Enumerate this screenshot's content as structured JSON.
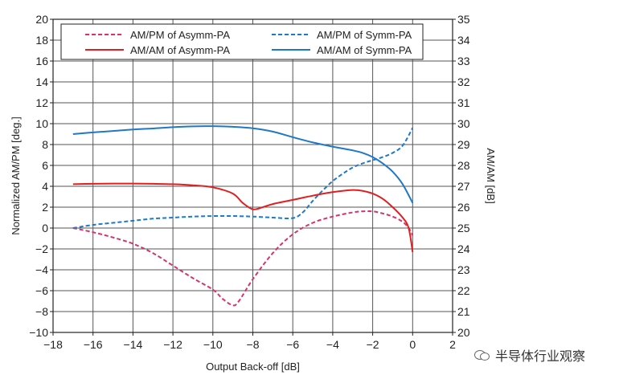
{
  "chart_data": {
    "type": "line",
    "xlabel": "Output Back-off [dB]",
    "ylabel_left": "Normalized AM/PM [deg.]",
    "ylabel_right": "AM/AM [dB]",
    "xlim": [
      -18,
      2
    ],
    "ylim_left": [
      -10,
      20
    ],
    "ylim_right": [
      20,
      35
    ],
    "xticks": [
      -18,
      -16,
      -14,
      -12,
      -10,
      -8,
      -6,
      -4,
      -2,
      0,
      2
    ],
    "yticks_left": [
      -10,
      -8,
      -6,
      -4,
      -2,
      0,
      2,
      4,
      6,
      8,
      10,
      12,
      14,
      16,
      18,
      20
    ],
    "yticks_right": [
      20,
      21,
      22,
      23,
      24,
      25,
      26,
      27,
      28,
      29,
      30,
      31,
      32,
      33,
      34,
      35
    ],
    "grid": true,
    "legend_position": "top",
    "series": [
      {
        "name": "AM/PM of Asymm-PA",
        "axis": "left",
        "style": "dashed",
        "color": "#d6336c",
        "points": [
          [
            -17,
            0
          ],
          [
            -16,
            -0.4
          ],
          [
            -15,
            -0.9
          ],
          [
            -14,
            -1.5
          ],
          [
            -13,
            -2.4
          ],
          [
            -12,
            -3.6
          ],
          [
            -11,
            -4.8
          ],
          [
            -10,
            -5.9
          ],
          [
            -9.5,
            -6.8
          ],
          [
            -9,
            -7.4
          ],
          [
            -8.7,
            -7.0
          ],
          [
            -8,
            -4.9
          ],
          [
            -7,
            -2.4
          ],
          [
            -6,
            -0.6
          ],
          [
            -5,
            0.5
          ],
          [
            -4,
            1.1
          ],
          [
            -3,
            1.5
          ],
          [
            -2.5,
            1.6
          ],
          [
            -2,
            1.6
          ],
          [
            -1.5,
            1.4
          ],
          [
            -1,
            1.1
          ],
          [
            -0.5,
            0.6
          ],
          [
            -0.2,
            0
          ],
          [
            0,
            -0.7
          ]
        ]
      },
      {
        "name": "AM/PM of Symm-PA",
        "axis": "left",
        "style": "dashed",
        "color": "#1f78c8",
        "points": [
          [
            -17,
            0
          ],
          [
            -16,
            0.3
          ],
          [
            -15,
            0.5
          ],
          [
            -14,
            0.7
          ],
          [
            -13,
            0.9
          ],
          [
            -12,
            1.0
          ],
          [
            -11,
            1.1
          ],
          [
            -10,
            1.15
          ],
          [
            -9,
            1.15
          ],
          [
            -8,
            1.1
          ],
          [
            -7,
            1.0
          ],
          [
            -6,
            0.95
          ],
          [
            -5.5,
            1.5
          ],
          [
            -5,
            2.6
          ],
          [
            -4.5,
            3.6
          ],
          [
            -4,
            4.5
          ],
          [
            -3.5,
            5.2
          ],
          [
            -3,
            5.8
          ],
          [
            -2.5,
            6.2
          ],
          [
            -2,
            6.5
          ],
          [
            -1.5,
            6.8
          ],
          [
            -1,
            7.2
          ],
          [
            -0.5,
            7.9
          ],
          [
            0,
            9.6
          ]
        ]
      },
      {
        "name": "AM/AM of Asymm-PA",
        "axis": "right",
        "style": "solid",
        "color": "#e02020",
        "points": [
          [
            -17,
            27.1
          ],
          [
            -16,
            27.12
          ],
          [
            -15,
            27.13
          ],
          [
            -14,
            27.13
          ],
          [
            -13,
            27.12
          ],
          [
            -12,
            27.1
          ],
          [
            -11,
            27.05
          ],
          [
            -10,
            26.95
          ],
          [
            -9,
            26.65
          ],
          [
            -8.5,
            26.2
          ],
          [
            -8,
            25.9
          ],
          [
            -7.5,
            26.0
          ],
          [
            -7,
            26.15
          ],
          [
            -6,
            26.35
          ],
          [
            -5,
            26.55
          ],
          [
            -4,
            26.72
          ],
          [
            -3,
            26.82
          ],
          [
            -2.5,
            26.78
          ],
          [
            -2,
            26.65
          ],
          [
            -1.5,
            26.4
          ],
          [
            -1,
            26.0
          ],
          [
            -0.5,
            25.5
          ],
          [
            -0.2,
            25.0
          ],
          [
            0,
            23.85
          ]
        ]
      },
      {
        "name": "AM/AM of Symm-PA",
        "axis": "right",
        "style": "solid",
        "color": "#1f78c8",
        "points": [
          [
            -17,
            29.5
          ],
          [
            -16,
            29.58
          ],
          [
            -15,
            29.65
          ],
          [
            -14,
            29.72
          ],
          [
            -13,
            29.77
          ],
          [
            -12,
            29.83
          ],
          [
            -11,
            29.87
          ],
          [
            -10,
            29.88
          ],
          [
            -9,
            29.85
          ],
          [
            -8,
            29.78
          ],
          [
            -7,
            29.62
          ],
          [
            -6,
            29.35
          ],
          [
            -5,
            29.1
          ],
          [
            -4,
            28.9
          ],
          [
            -3,
            28.72
          ],
          [
            -2.5,
            28.6
          ],
          [
            -2,
            28.4
          ],
          [
            -1.5,
            28.1
          ],
          [
            -1,
            27.7
          ],
          [
            -0.5,
            27.1
          ],
          [
            0,
            26.2
          ]
        ]
      }
    ]
  },
  "watermark": {
    "icon": "wechat-icon",
    "text": "半导体行业观察"
  }
}
